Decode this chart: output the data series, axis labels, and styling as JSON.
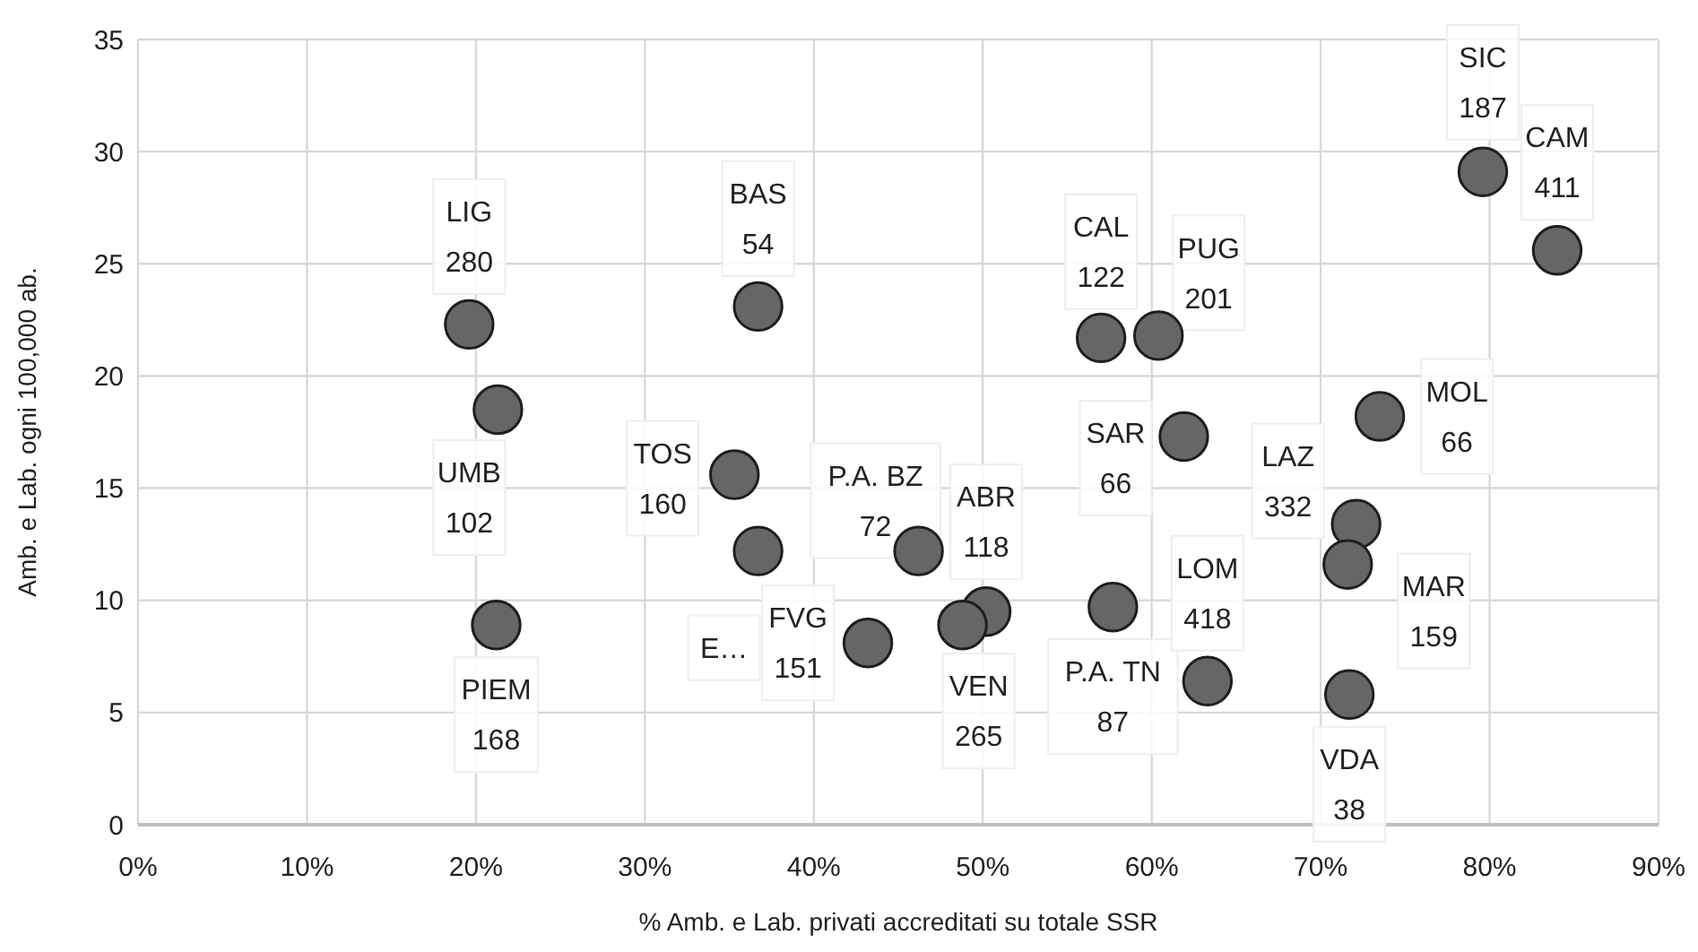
{
  "chart_data": {
    "type": "scatter",
    "xlabel": "% Amb. e Lab. privati accreditati su totale SSR",
    "ylabel": "Amb. e Lab. ogni 100,000 ab.",
    "xlim": [
      0,
      90
    ],
    "ylim": [
      0,
      35
    ],
    "xticks": [
      {
        "value": 0,
        "label": "0%"
      },
      {
        "value": 10,
        "label": "10%"
      },
      {
        "value": 20,
        "label": "20%"
      },
      {
        "value": 30,
        "label": "30%"
      },
      {
        "value": 40,
        "label": "40%"
      },
      {
        "value": 50,
        "label": "50%"
      },
      {
        "value": 60,
        "label": "60%"
      },
      {
        "value": 70,
        "label": "70%"
      },
      {
        "value": 80,
        "label": "80%"
      },
      {
        "value": 90,
        "label": "90%"
      }
    ],
    "yticks": [
      0,
      5,
      10,
      15,
      20,
      25,
      30,
      35
    ],
    "grid": true,
    "marker": "circle",
    "series": [
      {
        "color": "#666666",
        "x": [
          19.6,
          21.3,
          36.7,
          35.3,
          36.7,
          21.2,
          43.2,
          46.2,
          50.2,
          48.8,
          57.7,
          63.3,
          57.0,
          60.4,
          79.6,
          84.0,
          73.5,
          61.9,
          72.1,
          71.6,
          71.7
        ],
        "values": [
          22.3,
          18.5,
          23.1,
          15.6,
          12.2,
          8.9,
          8.1,
          12.2,
          9.5,
          8.9,
          9.7,
          6.4,
          21.7,
          21.8,
          29.1,
          25.6,
          18.2,
          17.3,
          13.4,
          11.6,
          5.8
        ],
        "value_labels": [
          "LIG\n280",
          "UMB\n102",
          "BAS\n54",
          "TOS\n160",
          "E…",
          "PIEM\n168",
          "FVG\n151",
          "P.A. BZ\n72",
          "ABR\n118",
          "VEN\n265",
          "P.A. TN\n87",
          "LOM\n418",
          "CAL\n122",
          "PUG\n201",
          "SIC\n187",
          "CAM\n411",
          "MOL\n66",
          "SAR\n66",
          "LAZ\n332",
          "MAR\n159",
          "VDA\n38"
        ]
      }
    ]
  }
}
